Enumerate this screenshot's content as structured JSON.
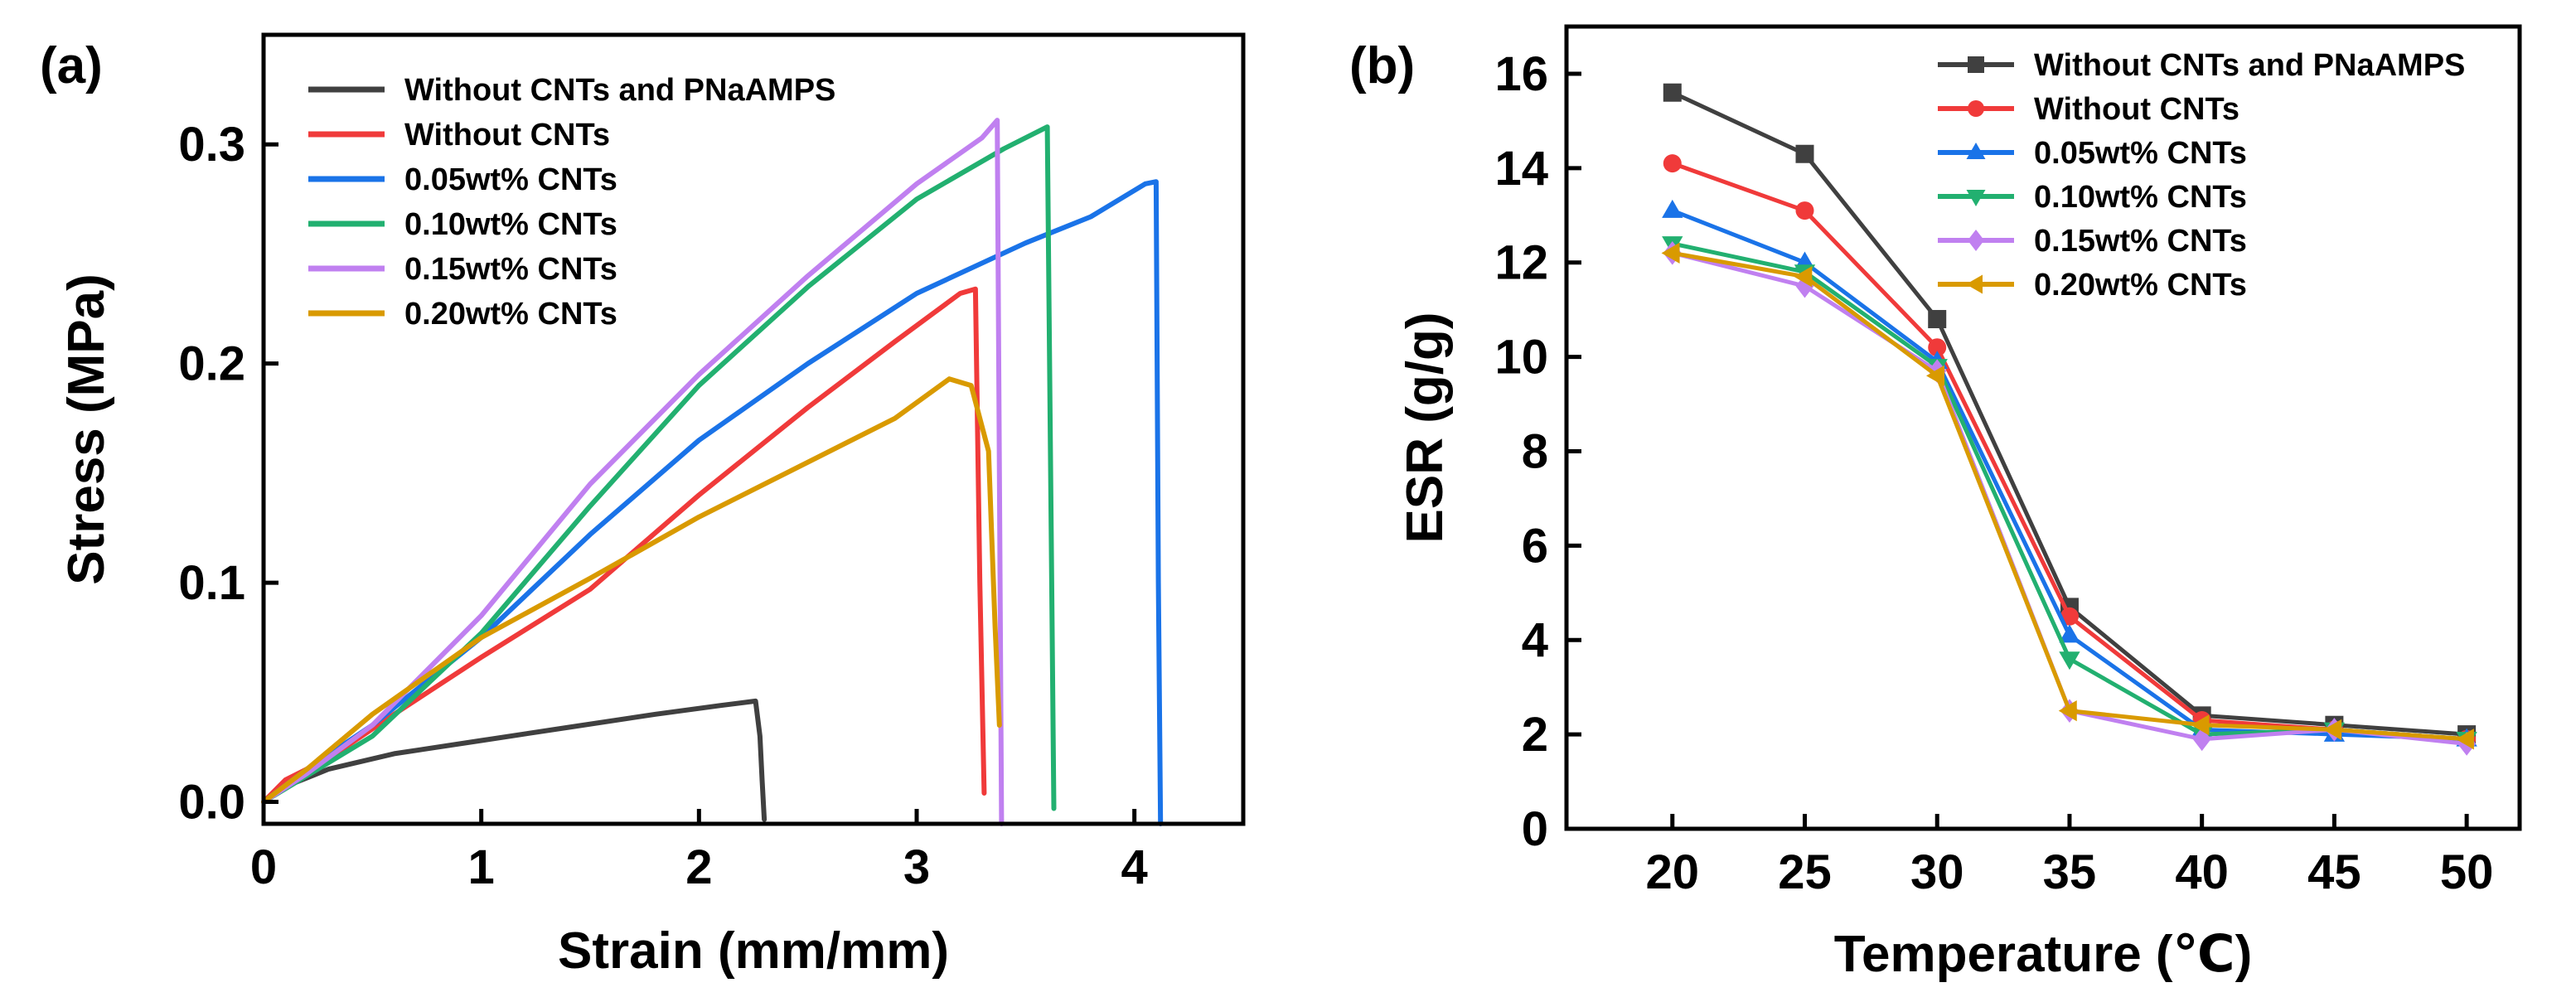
{
  "chart_data": [
    {
      "type": "line",
      "panel_label": "(a)",
      "xlabel": "Strain (mm/mm)",
      "ylabel": "Stress (MPa)",
      "xlim": [
        0,
        4.5
      ],
      "ylim": [
        -0.01,
        0.35
      ],
      "xticks": [
        0,
        1,
        2,
        3,
        4
      ],
      "xtick_labels": [
        "0",
        "1",
        "2",
        "3",
        "4"
      ],
      "yticks": [
        0.0,
        0.1,
        0.2,
        0.3
      ],
      "ytick_labels": [
        "0.0",
        "0.1",
        "0.2",
        "0.3"
      ],
      "grid": false,
      "legend": "top-left",
      "series": [
        {
          "name": "Without CNTs and PNaAMPS",
          "color": "#404040",
          "x": [
            0,
            0.1,
            0.3,
            0.6,
            1.0,
            1.4,
            1.8,
            2.1,
            2.26,
            2.28,
            2.29,
            2.3
          ],
          "y": [
            0,
            0.007,
            0.015,
            0.022,
            0.028,
            0.034,
            0.04,
            0.044,
            0.046,
            0.03,
            0.01,
            -0.008
          ]
        },
        {
          "name": "Without CNTs",
          "color": "#f03a3a",
          "x": [
            0,
            0.1,
            0.3,
            0.6,
            1.0,
            1.5,
            2.0,
            2.5,
            2.9,
            3.2,
            3.27,
            3.29,
            3.31
          ],
          "y": [
            0,
            0.01,
            0.02,
            0.04,
            0.066,
            0.097,
            0.14,
            0.18,
            0.21,
            0.232,
            0.234,
            0.1,
            0.004
          ]
        },
        {
          "name": "0.05wt% CNTs",
          "color": "#1a73e8",
          "x": [
            0,
            0.2,
            0.5,
            1.0,
            1.5,
            2.0,
            2.5,
            3.0,
            3.5,
            3.8,
            4.05,
            4.1,
            4.11,
            4.12
          ],
          "y": [
            0,
            0.015,
            0.035,
            0.075,
            0.122,
            0.165,
            0.2,
            0.232,
            0.255,
            0.267,
            0.282,
            0.283,
            0.1,
            -0.01
          ]
        },
        {
          "name": "0.10wt% CNTs",
          "color": "#22b070",
          "x": [
            0,
            0.2,
            0.5,
            1.0,
            1.5,
            2.0,
            2.5,
            3.0,
            3.4,
            3.6,
            3.62,
            3.63
          ],
          "y": [
            0,
            0.012,
            0.03,
            0.077,
            0.135,
            0.19,
            0.235,
            0.275,
            0.298,
            0.308,
            0.1,
            -0.003
          ]
        },
        {
          "name": "0.15wt% CNTs",
          "color": "#c080f0",
          "x": [
            0,
            0.2,
            0.5,
            1.0,
            1.5,
            2.0,
            2.5,
            3.0,
            3.3,
            3.37,
            3.38,
            3.39
          ],
          "y": [
            0,
            0.013,
            0.035,
            0.085,
            0.145,
            0.195,
            0.24,
            0.282,
            0.303,
            0.311,
            0.15,
            -0.01
          ]
        },
        {
          "name": "0.20wt% CNTs",
          "color": "#d99a00",
          "x": [
            0,
            0.2,
            0.5,
            1.0,
            1.5,
            2.0,
            2.5,
            2.9,
            3.15,
            3.25,
            3.33,
            3.36,
            3.38
          ],
          "y": [
            0,
            0.015,
            0.04,
            0.075,
            0.102,
            0.13,
            0.155,
            0.175,
            0.193,
            0.19,
            0.16,
            0.08,
            0.035
          ]
        }
      ]
    },
    {
      "type": "line",
      "panel_label": "(b)",
      "xlabel": "Temperature (℃)",
      "ylabel": "ESR (g/g)",
      "xlim": [
        16,
        52
      ],
      "ylim": [
        0,
        17
      ],
      "xticks": [
        20,
        25,
        30,
        35,
        40,
        45,
        50
      ],
      "xtick_labels": [
        "20",
        "25",
        "30",
        "35",
        "40",
        "45",
        "50"
      ],
      "yticks": [
        0,
        2,
        4,
        6,
        8,
        10,
        12,
        14,
        16
      ],
      "ytick_labels": [
        "0",
        "2",
        "4",
        "6",
        "8",
        "10",
        "12",
        "14",
        "16"
      ],
      "grid": false,
      "legend": "top-right",
      "x": [
        20,
        25,
        30,
        35,
        40,
        45,
        50
      ],
      "series": [
        {
          "name": "Without CNTs and PNaAMPS",
          "color": "#404040",
          "marker": "square",
          "values": [
            15.6,
            14.3,
            10.8,
            4.7,
            2.4,
            2.2,
            2.0
          ]
        },
        {
          "name": "Without CNTs",
          "color": "#f03a3a",
          "marker": "circle",
          "values": [
            14.1,
            13.1,
            10.2,
            4.5,
            2.3,
            2.1,
            1.9
          ]
        },
        {
          "name": "0.05wt% CNTs",
          "color": "#1a73e8",
          "marker": "triangle-up",
          "values": [
            13.1,
            12.0,
            9.9,
            4.1,
            2.1,
            2.0,
            1.9
          ]
        },
        {
          "name": "0.10wt% CNTs",
          "color": "#22b070",
          "marker": "triangle-down",
          "values": [
            12.4,
            11.8,
            9.8,
            3.6,
            2.0,
            2.1,
            1.9
          ]
        },
        {
          "name": "0.15wt% CNTs",
          "color": "#c080f0",
          "marker": "diamond",
          "values": [
            12.2,
            11.5,
            9.7,
            2.5,
            1.9,
            2.1,
            1.8
          ]
        },
        {
          "name": "0.20wt% CNTs",
          "color": "#d99a00",
          "marker": "triangle-left",
          "values": [
            12.2,
            11.7,
            9.6,
            2.5,
            2.2,
            2.1,
            1.9
          ]
        }
      ]
    }
  ]
}
